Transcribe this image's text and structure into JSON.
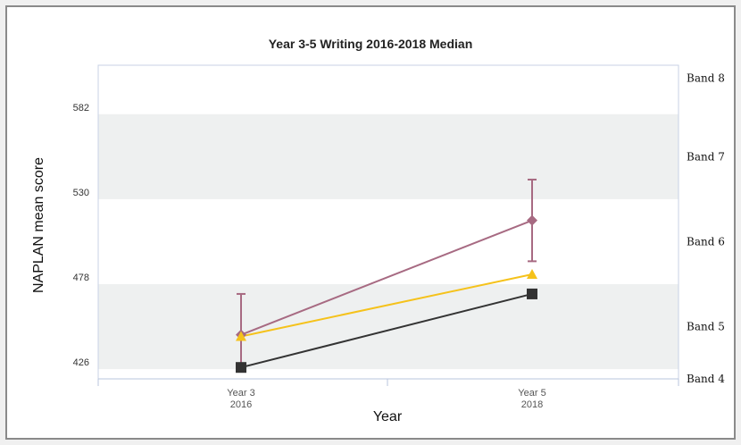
{
  "chart_data": {
    "type": "line",
    "title": "Year 3-5 Writing 2016-2018 Median",
    "xlabel": "Year",
    "ylabel": "NAPLAN mean score",
    "categories": [
      {
        "line1": "Year 3",
        "line2": "2016"
      },
      {
        "line1": "Year 5",
        "line2": "2018"
      }
    ],
    "ylim": [
      420,
      612
    ],
    "yticks": [
      426,
      478,
      530,
      582
    ],
    "band_shading": [
      {
        "from": 426,
        "to": 478,
        "shaded": true
      },
      {
        "from": 478,
        "to": 530,
        "shaded": false
      },
      {
        "from": 530,
        "to": 582,
        "shaded": true
      },
      {
        "from": 582,
        "to": 612,
        "shaded": false
      }
    ],
    "band_labels": [
      {
        "label": "Band 8",
        "y": 604
      },
      {
        "label": "Band 7",
        "y": 556
      },
      {
        "label": "Band 6",
        "y": 504
      },
      {
        "label": "Band 5",
        "y": 452
      },
      {
        "label": "Band 4",
        "y": 420
      }
    ],
    "series": [
      {
        "marker": "diamond",
        "color": "#a76a82",
        "values": [
          447,
          517
        ],
        "error_low": [
          425,
          492
        ],
        "error_high": [
          472,
          542
        ]
      },
      {
        "marker": "triangle",
        "color": "#f5c21b",
        "values": [
          446,
          484
        ]
      },
      {
        "marker": "square",
        "color": "#333333",
        "values": [
          427,
          472
        ]
      }
    ]
  }
}
